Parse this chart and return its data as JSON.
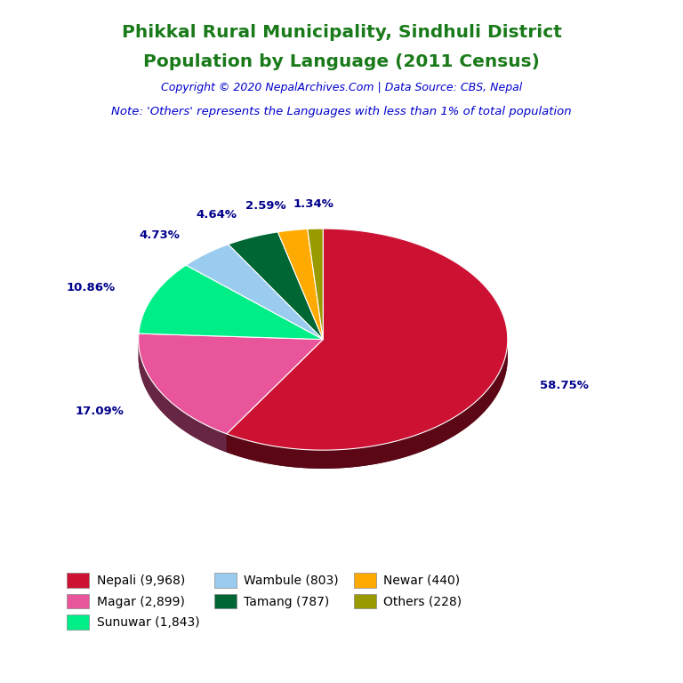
{
  "title_line1": "Phikkal Rural Municipality, Sindhuli District",
  "title_line2": "Population by Language (2011 Census)",
  "title_color": "#1a7a1a",
  "copyright_text": "Copyright © 2020 NepalArchives.Com | Data Source: CBS, Nepal",
  "copyright_color": "#0000CD",
  "note_text": "Note: 'Others' represents the Languages with less than 1% of total population",
  "note_color": "#0000CD",
  "labels": [
    "Nepali",
    "Magar",
    "Sunuwar",
    "Wambule",
    "Tamang",
    "Newar",
    "Others"
  ],
  "values": [
    9968,
    2899,
    1843,
    803,
    787,
    440,
    228
  ],
  "colors": [
    "#CC1133",
    "#E8559A",
    "#00EE88",
    "#99CCEE",
    "#006633",
    "#FFAA00",
    "#999900"
  ],
  "percentages": [
    "58.75%",
    "17.09%",
    "10.86%",
    "4.73%",
    "4.64%",
    "2.59%",
    "1.34%"
  ],
  "legend_labels": [
    "Nepali (9,968)",
    "Magar (2,899)",
    "Sunuwar (1,843)",
    "Wambule (803)",
    "Tamang (787)",
    "Newar (440)",
    "Others (228)"
  ],
  "background_color": "#FFFFFF",
  "label_color": "#00008B",
  "startangle": 90
}
